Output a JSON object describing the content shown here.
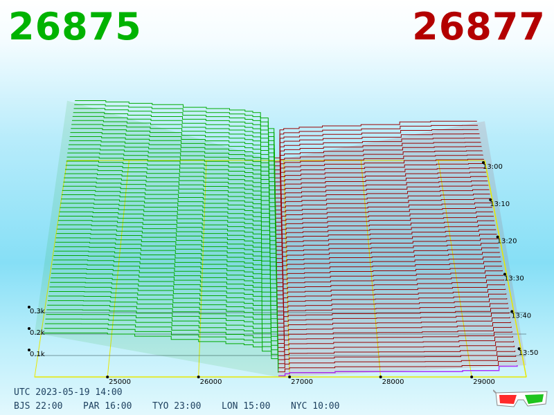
{
  "bid_price": "26875",
  "ask_price": "26877",
  "colors": {
    "bid": "#00b300",
    "ask": "#b30000",
    "bid_line": "#00aa00",
    "ask_line": "#990000",
    "grid": "#e8e800",
    "latest": "#aa33ff"
  },
  "clock": {
    "utc": "UTC 2023-05-19 14:00",
    "zones": [
      "BJS 22:00",
      "PAR 16:00",
      "TYO 23:00",
      "LON 15:00",
      "NYC 10:00"
    ]
  },
  "chart_data": {
    "type": "area",
    "x_ticks": [
      25000,
      26000,
      27000,
      28000,
      29000
    ],
    "x_tick_labels": [
      "25000",
      "26000",
      "27000",
      "28000",
      "29000"
    ],
    "y_ticks": [
      100,
      200,
      300
    ],
    "y_tick_labels": [
      "0.1k",
      "0.2k",
      "0.3k"
    ],
    "time_ticks": [
      "13:00",
      "13:10",
      "13:20",
      "13:30",
      "13:40",
      "13:50"
    ],
    "mid_price": 26876,
    "series": [
      {
        "side": "bid",
        "price": [
          24300,
          24700,
          25000,
          25300,
          25700,
          26000,
          26300,
          26500,
          26600,
          26700,
          26800,
          26875
        ],
        "cum_volume_oldest": [
          450,
          440,
          430,
          420,
          400,
          390,
          380,
          370,
          360,
          320,
          240,
          20
        ],
        "cum_volume_latest": [
          205,
          205,
          200,
          190,
          175,
          165,
          155,
          150,
          140,
          120,
          85,
          20
        ]
      },
      {
        "side": "ask",
        "price": [
          26877,
          26950,
          27000,
          27200,
          27500,
          28000,
          28500,
          28900,
          29300,
          29500
        ],
        "cum_volume_oldest": [
          20,
          230,
          240,
          250,
          260,
          270,
          290,
          295,
          295,
          295
        ],
        "cum_volume_latest": [
          5,
          15,
          20,
          20,
          25,
          25,
          25,
          30,
          50,
          55
        ]
      }
    ],
    "grid": true
  }
}
